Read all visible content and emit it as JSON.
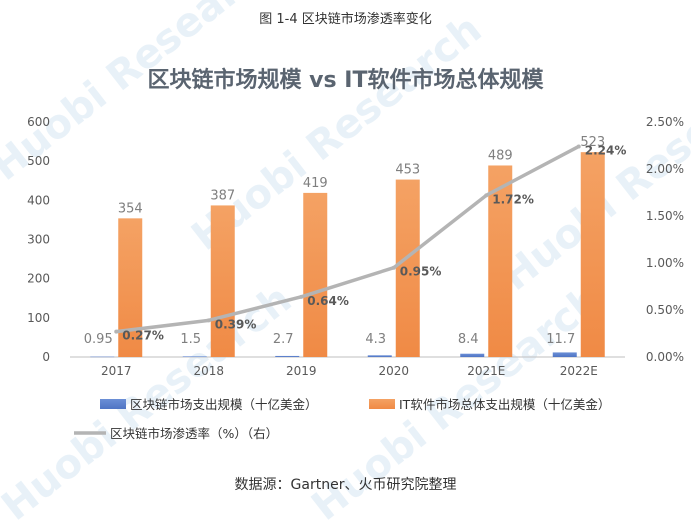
{
  "caption": "图 1-4  区块链市场渗透率变化",
  "source": "数据源：Gartner、火币研究院整理",
  "watermark": "Huobi Research",
  "colors": {
    "blue": "#6b8fd6",
    "orange": "#f4a264",
    "line": "#b4b4b4"
  },
  "chart_data": {
    "type": "bar",
    "title": "区块链市场规模 vs IT软件市场总体规模",
    "categories": [
      "2017",
      "2018",
      "2019",
      "2020",
      "2021E",
      "2022E"
    ],
    "y_left_ticks": [
      "0",
      "100",
      "200",
      "300",
      "400",
      "500",
      "600"
    ],
    "y_right_ticks": [
      "0.00%",
      "0.50%",
      "1.00%",
      "1.50%",
      "2.00%",
      "2.50%"
    ],
    "ylim_left": [
      0,
      600
    ],
    "ylim_right": [
      0,
      2.5
    ],
    "legend_position": "bottom",
    "series": [
      {
        "name": "区块链市场支出规模（十亿美金）",
        "type": "bar",
        "axis": "left",
        "values": [
          0.95,
          1.5,
          2.7,
          4.3,
          8.4,
          11.7
        ],
        "labels": [
          "0.95",
          "1.5",
          "2.7",
          "4.3",
          "8.4",
          "11.7"
        ]
      },
      {
        "name": "IT软件市场总体支出规模（十亿美金）",
        "type": "bar",
        "axis": "left",
        "values": [
          354,
          387,
          419,
          453,
          489,
          523
        ],
        "labels": [
          "354",
          "387",
          "419",
          "453",
          "489",
          "523"
        ]
      },
      {
        "name": "区块链市场渗透率（%）（右）",
        "type": "line",
        "axis": "right",
        "values": [
          0.27,
          0.39,
          0.64,
          0.95,
          1.72,
          2.24
        ],
        "labels": [
          "0.27%",
          "0.39%",
          "0.64%",
          "0.95%",
          "1.72%",
          "2.24%"
        ]
      }
    ]
  }
}
